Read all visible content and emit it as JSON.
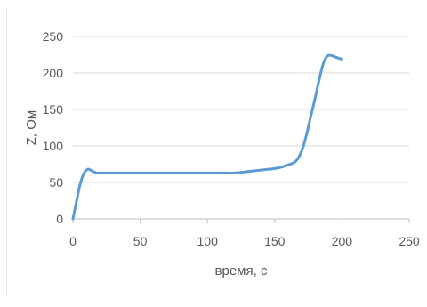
{
  "chart_data": {
    "type": "line",
    "title": "",
    "xlabel": "время, с",
    "ylabel": "Z, Ом",
    "xlim": [
      0,
      250
    ],
    "ylim": [
      0,
      250
    ],
    "xticks": [
      0,
      50,
      100,
      150,
      200,
      250
    ],
    "yticks": [
      0,
      50,
      100,
      150,
      200,
      250
    ],
    "grid": "horizontal",
    "legend": "none",
    "series": [
      {
        "color": "#5b9bd5",
        "x": [
          0,
          2,
          5,
          8,
          11,
          13,
          15,
          18,
          20,
          25,
          30,
          40,
          60,
          80,
          100,
          110,
          120,
          130,
          140,
          150,
          155,
          160,
          165,
          168,
          171,
          174,
          177,
          180,
          183,
          186,
          189,
          192,
          195,
          198,
          200
        ],
        "y": [
          0,
          18,
          45,
          62,
          68,
          67,
          65,
          63,
          63,
          63,
          63,
          63,
          63,
          63,
          63,
          63,
          63,
          65,
          67,
          69,
          71,
          74,
          78,
          85,
          98,
          118,
          142,
          165,
          190,
          212,
          223,
          224,
          222,
          220,
          219
        ]
      }
    ]
  }
}
